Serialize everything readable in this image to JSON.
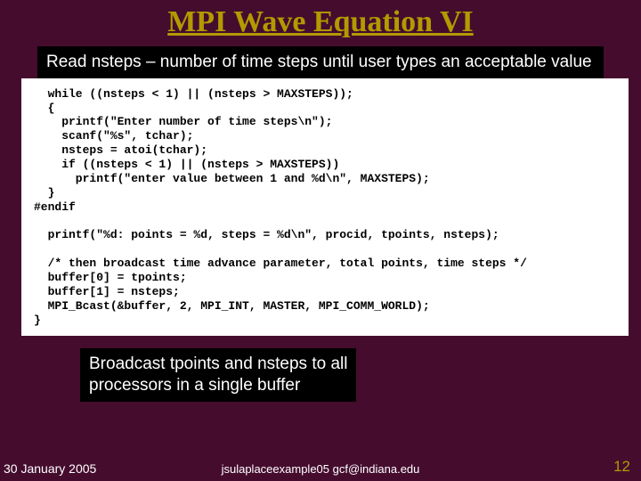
{
  "title": {
    "text": "MPI Wave Equation VI",
    "color": "#b29a00",
    "fontsize": 34
  },
  "annotation_top": {
    "text": "Read nsteps – number of time steps until user types an acceptable value",
    "fontsize": 19
  },
  "code": {
    "fontsize": 13,
    "text": "  while ((nsteps < 1) || (nsteps > MAXSTEPS));\n  {\n    printf(\"Enter number of time steps\\n\");\n    scanf(\"%s\", tchar);\n    nsteps = atoi(tchar);\n    if ((nsteps < 1) || (nsteps > MAXSTEPS))\n      printf(\"enter value between 1 and %d\\n\", MAXSTEPS);\n  }\n#endif\n\n  printf(\"%d: points = %d, steps = %d\\n\", procid, tpoints, nsteps);\n\n  /* then broadcast time advance parameter, total points, time steps */\n  buffer[0] = tpoints;\n  buffer[1] = nsteps;\n  MPI_Bcast(&buffer, 2, MPI_INT, MASTER, MPI_COMM_WORLD);\n}"
  },
  "annotation_bottom": {
    "text": "Broadcast tpoints and nsteps to all\nprocessors in a single buffer",
    "fontsize": 19
  },
  "footer": {
    "date": "30 January 2005",
    "center": "jsulaplaceexample05  gcf@indiana.edu",
    "page": "12",
    "date_fontsize": 14,
    "center_fontsize": 13,
    "page_fontsize": 17,
    "page_color": "#b29a00"
  },
  "colors": {
    "background": "#450c2e",
    "annotation_bg": "#000000",
    "annotation_fg": "#ffffff",
    "code_bg": "#ffffff",
    "code_fg": "#000000"
  }
}
